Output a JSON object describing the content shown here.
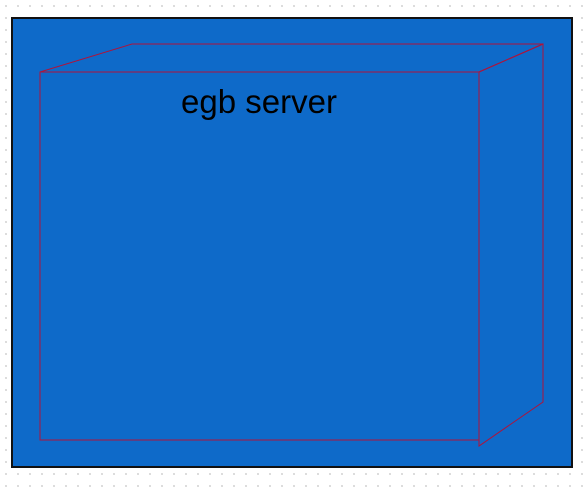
{
  "diagram": {
    "node": {
      "label": "egb server",
      "shape": "3d-box",
      "fill_color": "#0e6ac9",
      "edge_color": "#b0133a"
    },
    "background_color": "#0e6ac9",
    "frame_color": "#111111"
  }
}
